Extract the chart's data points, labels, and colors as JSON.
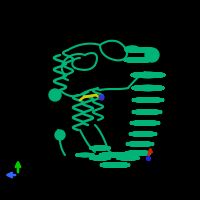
{
  "background_color": "#000000",
  "protein_color": "#00b377",
  "protein_color_mid": "#009960",
  "protein_color_dark": "#007744",
  "ligand_yellow": "#cccc00",
  "ligand_blue_dark": "#3333cc",
  "axis_green": "#00cc00",
  "axis_blue": "#3366ff",
  "axis_red": "#cc2200",
  "axis_blue2": "#2222cc",
  "figsize": [
    2.0,
    2.0
  ],
  "dpi": 100
}
